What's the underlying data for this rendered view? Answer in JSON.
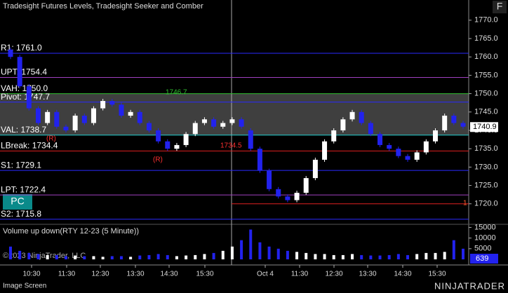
{
  "chart_data": {
    "type": "candlestick",
    "title": "Tradesight Futures Levels, Tradesight Seeker and Comber",
    "corner_button": "F",
    "open": [
      1762,
      1760,
      1752,
      1746,
      1742,
      1745,
      1741,
      1740,
      1744,
      1742,
      1746,
      1748,
      1747,
      1744,
      1745,
      1742,
      1740,
      1737,
      1735,
      1736,
      1739,
      1742,
      1743,
      1741,
      1742,
      1743,
      1740,
      1735,
      1729,
      1724,
      1722,
      1721,
      1723,
      1727,
      1732,
      1737,
      1740,
      1743,
      1745,
      1742,
      1739,
      1736,
      1735,
      1733,
      1732,
      1734,
      1737,
      1740,
      1744,
      1742
    ],
    "close": [
      1760,
      1752,
      1746,
      1742,
      1745,
      1741,
      1740,
      1744,
      1742,
      1746,
      1748,
      1747,
      1744,
      1745,
      1742,
      1740,
      1737,
      1735,
      1736,
      1739,
      1742,
      1743,
      1741,
      1742,
      1743,
      1741,
      1735,
      1729,
      1724,
      1722,
      1721,
      1723,
      1727,
      1732,
      1737,
      1740,
      1743,
      1745,
      1742,
      1739,
      1736,
      1735,
      1733,
      1732,
      1734,
      1737,
      1740,
      1744,
      1742,
      1741
    ],
    "volume": [
      6000,
      4000,
      3000,
      2500,
      2000,
      2000,
      1500,
      1800,
      1500,
      1500,
      1200,
      1500,
      1500,
      1200,
      1800,
      2000,
      2500,
      2000,
      1500,
      1800,
      2000,
      2500,
      3000,
      4000,
      6000,
      9000,
      14000,
      8000,
      6000,
      5000,
      4000,
      3500,
      3000,
      2500,
      2500,
      2000,
      2000,
      2500,
      2000,
      1800,
      1800,
      2000,
      2500,
      2000,
      2500,
      3000,
      3000,
      3500,
      9000,
      5000
    ],
    "up_color": "#ffffff",
    "down_color": "#2222ee",
    "ylim": [
      1714.8,
      1775.5
    ],
    "yticks": [
      {
        "value": 1720,
        "label": "1720.0"
      },
      {
        "value": 1725,
        "label": "1725.0"
      },
      {
        "value": 1730,
        "label": "1730.0"
      },
      {
        "value": 1735,
        "label": "1735.0"
      },
      {
        "value": 1740,
        "label": "1740.0"
      },
      {
        "value": 1745,
        "label": "1745.0"
      },
      {
        "value": 1750,
        "label": "1750.0"
      },
      {
        "value": 1755,
        "label": "1755.0"
      },
      {
        "value": 1760,
        "label": "1760.0"
      },
      {
        "value": 1765,
        "label": "1765.0"
      },
      {
        "value": 1770,
        "label": "1770.0"
      }
    ],
    "last_price": 1740.9,
    "levels": [
      {
        "label": "R1: 1761.0",
        "value": 1761.0,
        "color": "#2a2aff"
      },
      {
        "label": "UPT: 1754.4",
        "value": 1754.4,
        "color": "#a040c0"
      },
      {
        "label": "VAH: 1750.0",
        "value": 1750.0,
        "color": "#30c030"
      },
      {
        "label": "Pivot: 1747.7",
        "value": 1747.7,
        "color": "#2a2aff"
      },
      {
        "label": "VAL: 1738.7",
        "value": 1738.7,
        "color": "#20d0d0"
      },
      {
        "label": "LBreak: 1734.4",
        "value": 1734.4,
        "color": "#e02020"
      },
      {
        "label": "S1: 1729.1",
        "value": 1729.1,
        "color": "#2a2aff"
      },
      {
        "label": "LPT: 1722.4",
        "value": 1722.4,
        "color": "#a040c0"
      },
      {
        "label": "S2: 1715.8",
        "value": 1715.8,
        "color": "#2a2aff"
      }
    ],
    "annotations": [
      "1734.5",
      "(R)",
      "(R)",
      "1746.7",
      "1"
    ],
    "button": "PC",
    "volume_title": "Volume up down(RTY 12-23 (5 Minute))",
    "volume_ylim": [
      0,
      15800
    ],
    "volume_yticks": [
      5000,
      10000,
      15000
    ],
    "last_volume": 639,
    "time_labels": [
      "10:30",
      "11:30",
      "12:30",
      "13:30",
      "14:30",
      "15:30",
      "Oct 4",
      "11:30",
      "12:30",
      "13:30",
      "14:30",
      "15:30"
    ],
    "copyright": "©2023 NinjaTrader, LLC",
    "status": "Image Screen",
    "brand": "NINJATRADER"
  }
}
